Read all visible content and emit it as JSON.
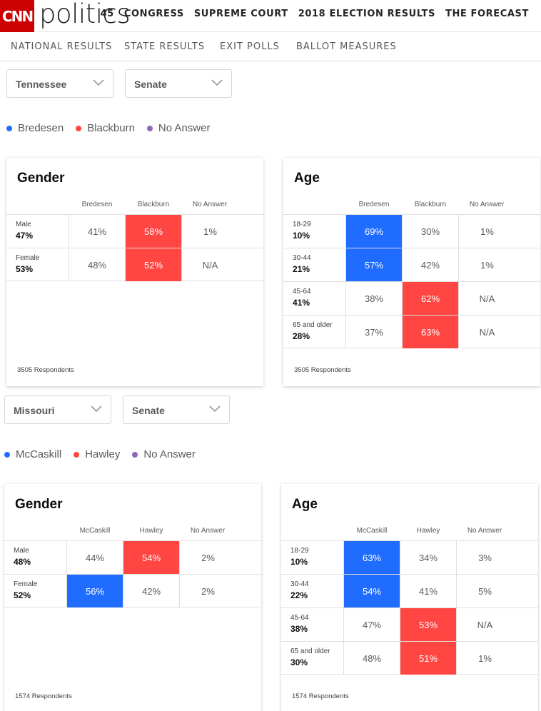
{
  "header": {
    "logo": "CNN",
    "section": "politics",
    "nav": [
      "45",
      "CONGRESS",
      "SUPREME COURT",
      "2018 ELECTION RESULTS",
      "THE FORECAST"
    ]
  },
  "subnav": [
    "NATIONAL RESULTS",
    "STATE RESULTS",
    "EXIT POLLS",
    "BALLOT MEASURES"
  ],
  "colors": {
    "dem": "#1f6cff",
    "rep": "#ff4642",
    "none": "#8e6ab8",
    "brand": "#cc0000"
  },
  "races": [
    {
      "state": "Tennessee",
      "race": "Senate",
      "legend": [
        "Bredesen",
        "Blackburn",
        "No Answer"
      ],
      "gender": {
        "title": "Gender",
        "columns": [
          "Bredesen",
          "Blackburn",
          "No Answer"
        ],
        "rows": [
          {
            "label": "Male",
            "share": "47%",
            "values": [
              "41%",
              "58%",
              "1%"
            ],
            "winner": 1
          },
          {
            "label": "Female",
            "share": "53%",
            "values": [
              "48%",
              "52%",
              "N/A"
            ],
            "winner": 1
          }
        ],
        "respondents": "3505 Respondents"
      },
      "age": {
        "title": "Age",
        "columns": [
          "Bredesen",
          "Blackburn",
          "No Answer"
        ],
        "rows": [
          {
            "label": "18-29",
            "share": "10%",
            "values": [
              "69%",
              "30%",
              "1%"
            ],
            "winner": 0
          },
          {
            "label": "30-44",
            "share": "21%",
            "values": [
              "57%",
              "42%",
              "1%"
            ],
            "winner": 0
          },
          {
            "label": "45-64",
            "share": "41%",
            "values": [
              "38%",
              "62%",
              "N/A"
            ],
            "winner": 1
          },
          {
            "label": "65 and older",
            "share": "28%",
            "values": [
              "37%",
              "63%",
              "N/A"
            ],
            "winner": 1
          }
        ],
        "respondents": "3505 Respondents"
      }
    },
    {
      "state": "Missouri",
      "race": "Senate",
      "legend": [
        "McCaskill",
        "Hawley",
        "No Answer"
      ],
      "gender": {
        "title": "Gender",
        "columns": [
          "McCaskill",
          "Hawley",
          "No Answer"
        ],
        "rows": [
          {
            "label": "Male",
            "share": "48%",
            "values": [
              "44%",
              "54%",
              "2%"
            ],
            "winner": 1
          },
          {
            "label": "Female",
            "share": "52%",
            "values": [
              "56%",
              "42%",
              "2%"
            ],
            "winner": 0
          }
        ],
        "respondents": "1574 Respondents"
      },
      "age": {
        "title": "Age",
        "columns": [
          "McCaskill",
          "Hawley",
          "No Answer"
        ],
        "rows": [
          {
            "label": "18-29",
            "share": "10%",
            "values": [
              "63%",
              "34%",
              "3%"
            ],
            "winner": 0
          },
          {
            "label": "30-44",
            "share": "22%",
            "values": [
              "54%",
              "41%",
              "5%"
            ],
            "winner": 0
          },
          {
            "label": "45-64",
            "share": "38%",
            "values": [
              "47%",
              "53%",
              "N/A"
            ],
            "winner": 1
          },
          {
            "label": "65 and older",
            "share": "30%",
            "values": [
              "48%",
              "51%",
              "1%"
            ],
            "winner": 1
          }
        ],
        "respondents": "1574 Respondents"
      }
    }
  ]
}
